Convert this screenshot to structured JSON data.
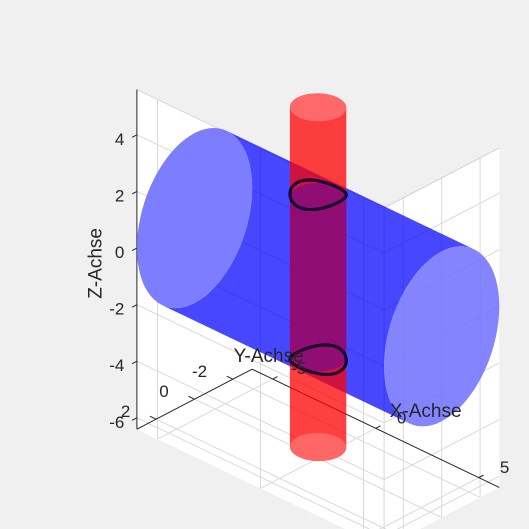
{
  "window": {
    "background": "#f0f0f0"
  },
  "chart_data": {
    "type": "3d-surface",
    "title": "",
    "xlabel": "X-Achse",
    "ylabel": "Y-Achse",
    "zlabel": "Z-Achse",
    "xlim": [
      -6,
      6
    ],
    "ylim": [
      -3,
      3
    ],
    "zlim": [
      -6.4,
      5.6
    ],
    "xticks": [
      -5,
      0,
      5
    ],
    "yticks": [
      -2,
      0,
      2
    ],
    "zticks": [
      -6,
      -4,
      -2,
      0,
      2,
      4
    ],
    "grid": true,
    "box": true,
    "view": {
      "azimuth_deg": -37.5,
      "elevation_deg": 30
    },
    "series": [
      {
        "type": "cylinder",
        "axis": "x",
        "radius": 3,
        "x_range": [
          -6,
          6
        ],
        "color": "#0000ff",
        "cap_color": "#6f6fff",
        "alpha": 0.55
      },
      {
        "type": "cylinder",
        "axis": "z",
        "radius": 1,
        "z_range": [
          -6,
          6
        ],
        "color": "#ff0000",
        "alpha": 0.7
      },
      {
        "type": "intersection-curve",
        "description_source": "visible black closed curves where cylinders meet",
        "color": "#000000",
        "z_levels": [
          3.0,
          -3.0
        ]
      }
    ]
  }
}
